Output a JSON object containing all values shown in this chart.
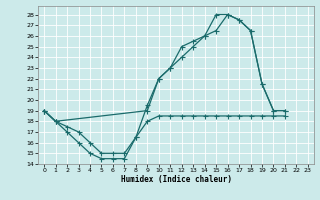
{
  "xlabel": "Humidex (Indice chaleur)",
  "bg_color": "#cceaea",
  "grid_color": "#ffffff",
  "line_color": "#1a6b6b",
  "xlim": [
    -0.5,
    23.5
  ],
  "ylim": [
    14,
    28.8
  ],
  "yticks": [
    14,
    15,
    16,
    17,
    18,
    19,
    20,
    21,
    22,
    23,
    24,
    25,
    26,
    27,
    28
  ],
  "xticks": [
    0,
    1,
    2,
    3,
    4,
    5,
    6,
    7,
    8,
    9,
    10,
    11,
    12,
    13,
    14,
    15,
    16,
    17,
    18,
    19,
    20,
    21,
    22,
    23
  ],
  "curve1_x": [
    0,
    1,
    2,
    3,
    4,
    5,
    6,
    7,
    8,
    9,
    10,
    11,
    12,
    13,
    14,
    15,
    16,
    17,
    18,
    19,
    20,
    21
  ],
  "curve1_y": [
    19,
    18,
    17,
    16,
    15,
    14.5,
    14.5,
    14.5,
    16.5,
    19.5,
    22,
    23,
    25,
    25.5,
    26,
    28,
    28,
    27.5,
    26.5,
    21.5,
    19,
    19
  ],
  "curve2_x": [
    0,
    1,
    9,
    10,
    11,
    12,
    13,
    14,
    15,
    16,
    17,
    18,
    19,
    20,
    21
  ],
  "curve2_y": [
    19,
    18,
    19,
    22,
    23,
    24,
    25,
    26,
    26.5,
    28,
    27.5,
    26.5,
    21.5,
    19,
    19
  ],
  "curve3_x": [
    0,
    1,
    2,
    3,
    4,
    5,
    6,
    7,
    8,
    9,
    10,
    11,
    12,
    13,
    14,
    15,
    16,
    17,
    18,
    19,
    20,
    21
  ],
  "curve3_y": [
    19,
    18,
    17.5,
    17,
    16,
    15,
    15,
    15,
    16.5,
    18,
    18.5,
    18.5,
    18.5,
    18.5,
    18.5,
    18.5,
    18.5,
    18.5,
    18.5,
    18.5,
    18.5,
    18.5
  ]
}
